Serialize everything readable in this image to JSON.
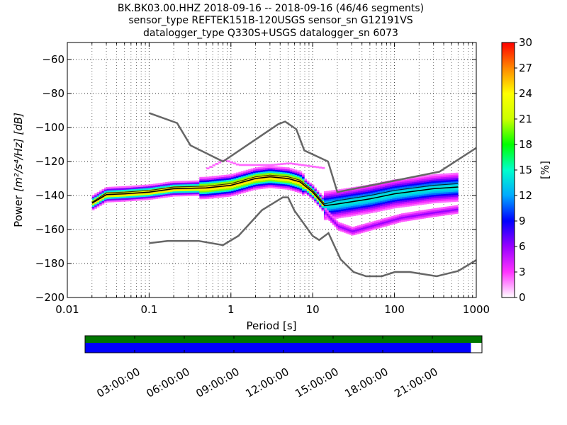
{
  "chart_data": {
    "type": "heatmap",
    "title_lines": [
      "BK.BK03.00.HHZ   2018-09-16 -- 2018-09-16  (46/46 segments)",
      "sensor_type REFTEK151B-120USGS sensor_sn G12191VS",
      "datalogger_type Q330S+USGS datalogger_sn 6073"
    ],
    "xlabel": "Period [s]",
    "ylabel_text": "Power",
    "ylabel_units": "[m²/s⁴/Hz] [dB]",
    "xscale": "log",
    "xlim": [
      0.01,
      1000
    ],
    "ylim": [
      -200,
      -50
    ],
    "xticks": [
      {
        "v": 0.01,
        "label": "0.01"
      },
      {
        "v": 0.1,
        "label": "0.1"
      },
      {
        "v": 1,
        "label": "1"
      },
      {
        "v": 10,
        "label": "10"
      },
      {
        "v": 100,
        "label": "100"
      },
      {
        "v": 1000,
        "label": "1000"
      }
    ],
    "yticks": [
      {
        "v": -60,
        "label": "−60"
      },
      {
        "v": -80,
        "label": "−80"
      },
      {
        "v": -100,
        "label": "−100"
      },
      {
        "v": -120,
        "label": "−120"
      },
      {
        "v": -140,
        "label": "−140"
      },
      {
        "v": -160,
        "label": "−160"
      },
      {
        "v": -180,
        "label": "−180"
      },
      {
        "v": -200,
        "label": "−200"
      }
    ],
    "colorbar": {
      "label": "[%]",
      "min": 0,
      "max": 30,
      "ticks": [
        {
          "v": 0,
          "label": "0"
        },
        {
          "v": 3,
          "label": "3"
        },
        {
          "v": 6,
          "label": "6"
        },
        {
          "v": 9,
          "label": "9"
        },
        {
          "v": 12,
          "label": "12"
        },
        {
          "v": 15,
          "label": "15"
        },
        {
          "v": 18,
          "label": "18"
        },
        {
          "v": 21,
          "label": "21"
        },
        {
          "v": 24,
          "label": "24"
        },
        {
          "v": 27,
          "label": "27"
        },
        {
          "v": 30,
          "label": "30"
        }
      ],
      "colors": [
        "#ffffff",
        "#ff33ff",
        "#9900ff",
        "#0000ff",
        "#00aaff",
        "#00ffcc",
        "#00ff00",
        "#ccff00",
        "#ffff00",
        "#ff8800",
        "#ff0000"
      ]
    },
    "noise_models": {
      "high": [
        [
          0.1,
          -91.5
        ],
        [
          0.22,
          -97.4
        ],
        [
          0.32,
          -110.5
        ],
        [
          0.8,
          -120
        ],
        [
          3.8,
          -98
        ],
        [
          4.6,
          -96.5
        ],
        [
          6.3,
          -101
        ],
        [
          7.9,
          -113.5
        ],
        [
          15.4,
          -120
        ],
        [
          20,
          -138
        ],
        [
          354.8,
          -126
        ],
        [
          1000,
          -112
        ]
      ],
      "low": [
        [
          0.1,
          -168
        ],
        [
          0.17,
          -166.7
        ],
        [
          0.4,
          -166.7
        ],
        [
          0.8,
          -169.2
        ],
        [
          1.24,
          -163.7
        ],
        [
          2.4,
          -148.6
        ],
        [
          4.3,
          -141.1
        ],
        [
          5,
          -141.1
        ],
        [
          6,
          -149
        ],
        [
          10,
          -163.8
        ],
        [
          12,
          -166.2
        ],
        [
          15.6,
          -162.1
        ],
        [
          21.9,
          -177.5
        ],
        [
          31.6,
          -185
        ],
        [
          45,
          -187.5
        ],
        [
          70,
          -187.5
        ],
        [
          101,
          -185
        ],
        [
          154,
          -185
        ],
        [
          328,
          -187.5
        ],
        [
          600,
          -184.4
        ],
        [
          1000,
          -178
        ]
      ]
    },
    "median_curve": [
      [
        0.02,
        -144.5
      ],
      [
        0.03,
        -139.5
      ],
      [
        0.05,
        -139
      ],
      [
        0.1,
        -138
      ],
      [
        0.2,
        -136
      ],
      [
        0.5,
        -135.5
      ],
      [
        1,
        -134
      ],
      [
        2,
        -130
      ],
      [
        3,
        -129
      ],
      [
        5,
        -130
      ],
      [
        7,
        -132
      ],
      [
        10,
        -138
      ],
      [
        14,
        -146
      ],
      [
        20,
        -145
      ],
      [
        50,
        -142
      ],
      [
        100,
        -139
      ],
      [
        300,
        -136
      ],
      [
        600,
        -135
      ]
    ],
    "mean_curve": [
      [
        0.02,
        -144
      ],
      [
        0.03,
        -138.5
      ],
      [
        0.05,
        -138
      ],
      [
        0.1,
        -137
      ],
      [
        0.2,
        -135
      ],
      [
        0.5,
        -134.5
      ],
      [
        1,
        -133
      ],
      [
        2,
        -129
      ],
      [
        3,
        -128
      ],
      [
        5,
        -129
      ],
      [
        7,
        -131
      ],
      [
        10,
        -137
      ],
      [
        14,
        -145
      ],
      [
        20,
        -143
      ],
      [
        50,
        -140
      ],
      [
        100,
        -137
      ],
      [
        300,
        -134
      ],
      [
        600,
        -133
      ]
    ]
  },
  "timeline": {
    "labels": [
      "03:00:00",
      "06:00:00",
      "09:00:00",
      "12:00:00",
      "15:00:00",
      "18:00:00",
      "21:00:00"
    ],
    "hours": [
      3,
      6,
      9,
      12,
      15,
      18,
      21
    ],
    "data_end_fraction": 0.9722,
    "colors": {
      "top": "#007700",
      "bottom": "#0000ff"
    }
  }
}
